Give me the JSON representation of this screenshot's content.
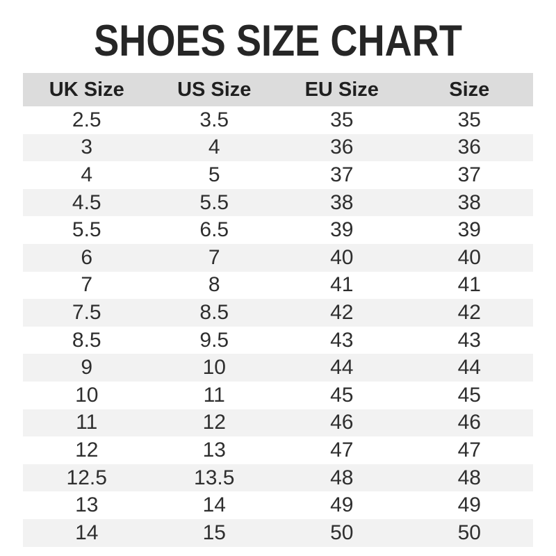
{
  "page": {
    "title": "SHOES SIZE CHART"
  },
  "colors": {
    "header_bg": "#dcdcdc",
    "stripe_bg": "#f2f2f2",
    "title_color": "#262626",
    "header_text": "#1f1f1f",
    "cell_text": "#2e2e2e",
    "page_bg": "#ffffff"
  },
  "chart_data": {
    "type": "table",
    "title": "SHOES SIZE CHART",
    "columns": [
      "UK Size",
      "US Size",
      "EU Size",
      "Size"
    ],
    "rows": [
      [
        2.5,
        3.5,
        35,
        35
      ],
      [
        3,
        4,
        36,
        36
      ],
      [
        4,
        5,
        37,
        37
      ],
      [
        4.5,
        5.5,
        38,
        38
      ],
      [
        5.5,
        6.5,
        39,
        39
      ],
      [
        6,
        7,
        40,
        40
      ],
      [
        7,
        8,
        41,
        41
      ],
      [
        7.5,
        8.5,
        42,
        42
      ],
      [
        8.5,
        9.5,
        43,
        43
      ],
      [
        9,
        10,
        44,
        44
      ],
      [
        10,
        11,
        45,
        45
      ],
      [
        11,
        12,
        46,
        46
      ],
      [
        12,
        13,
        47,
        47
      ],
      [
        12.5,
        13.5,
        48,
        48
      ],
      [
        13,
        14,
        49,
        49
      ],
      [
        14,
        15,
        50,
        50
      ]
    ],
    "layout": {
      "striped": true,
      "stripe_pattern": "even rows shaded",
      "alignment": "center",
      "grid": false
    }
  }
}
